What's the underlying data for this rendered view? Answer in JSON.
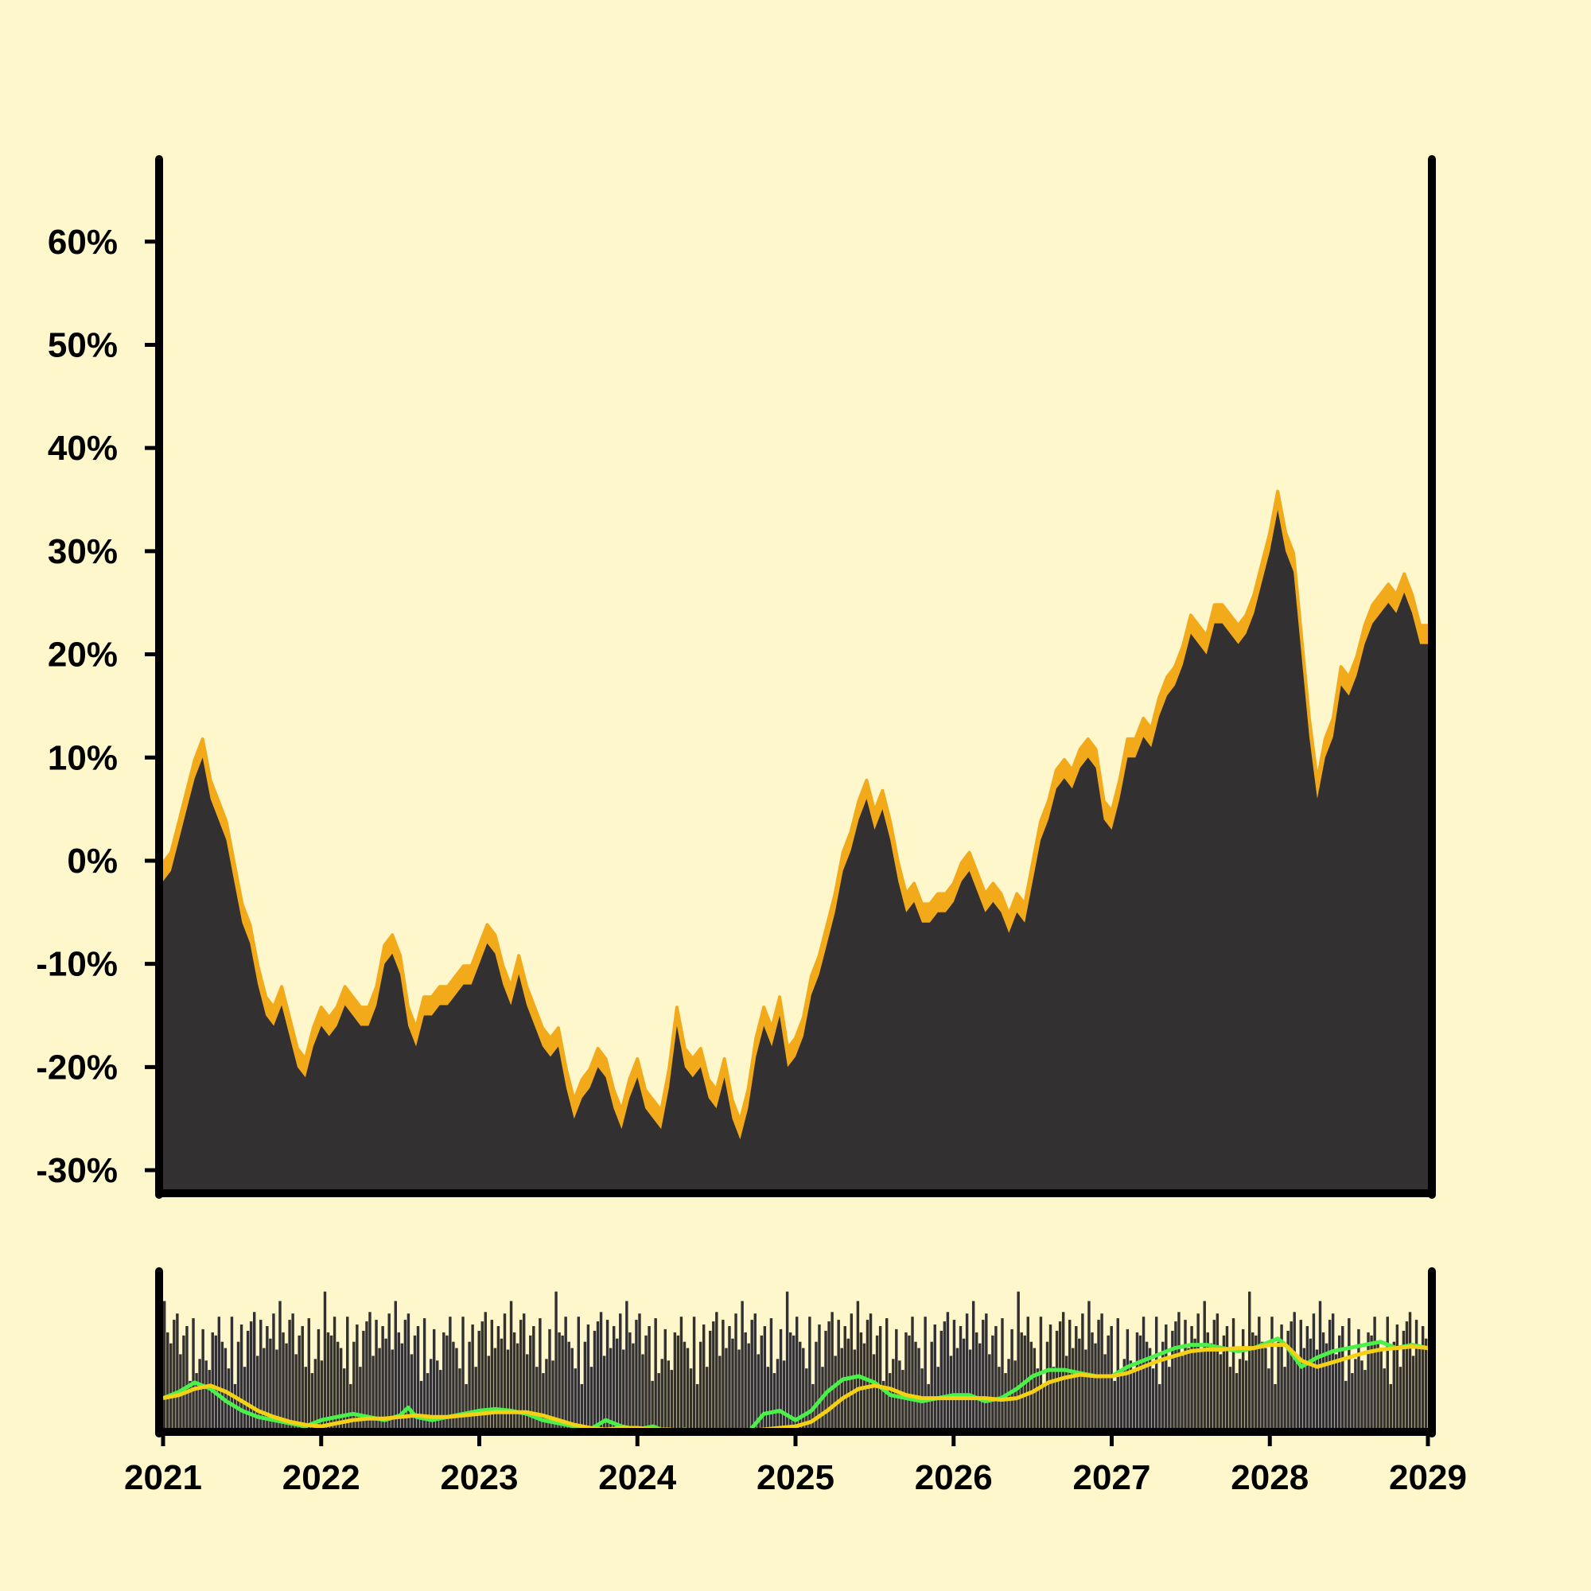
{
  "chart_data": {
    "type": "area",
    "y_tick_labels": [
      "60%",
      "50%",
      "40%",
      "30%",
      "20%",
      "10%",
      "0%",
      "-10%",
      "-20%",
      "-30%"
    ],
    "y_tick_values": [
      60,
      50,
      40,
      30,
      20,
      10,
      0,
      -10,
      -20,
      -30
    ],
    "x_tick_labels": [
      "2021",
      "2022",
      "2023",
      "2024",
      "2025",
      "2026",
      "2027",
      "2028",
      "2029"
    ],
    "x_tick_values": [
      2021,
      2022,
      2023,
      2024,
      2025,
      2026,
      2027,
      2028,
      2029
    ],
    "ylim": [
      -32,
      68
    ],
    "xlim": [
      2021,
      2029
    ],
    "volume_ylim": [
      0,
      100
    ],
    "grid": false,
    "colors": {
      "background": "#FEF7CB",
      "area_fill": "#333031",
      "band": "#F2AA1A",
      "axis": "#000000",
      "volume_bar": "#333031",
      "ma_fast": "#4BF04B",
      "ma_slow": "#F5D116"
    },
    "price_series": {
      "x": [
        2021.0,
        2021.05,
        2021.1,
        2021.15,
        2021.2,
        2021.25,
        2021.3,
        2021.35,
        2021.4,
        2021.45,
        2021.5,
        2021.55,
        2021.6,
        2021.65,
        2021.7,
        2021.75,
        2021.8,
        2021.85,
        2021.9,
        2021.95,
        2022.0,
        2022.05,
        2022.1,
        2022.15,
        2022.2,
        2022.25,
        2022.3,
        2022.35,
        2022.4,
        2022.45,
        2022.5,
        2022.55,
        2022.6,
        2022.65,
        2022.7,
        2022.75,
        2022.8,
        2022.85,
        2022.9,
        2022.95,
        2023.0,
        2023.05,
        2023.1,
        2023.15,
        2023.2,
        2023.25,
        2023.3,
        2023.35,
        2023.4,
        2023.45,
        2023.5,
        2023.55,
        2023.6,
        2023.65,
        2023.7,
        2023.75,
        2023.8,
        2023.85,
        2023.9,
        2023.95,
        2024.0,
        2024.05,
        2024.1,
        2024.15,
        2024.2,
        2024.25,
        2024.3,
        2024.35,
        2024.4,
        2024.45,
        2024.5,
        2024.55,
        2024.6,
        2024.65,
        2024.7,
        2024.75,
        2024.8,
        2024.85,
        2024.9,
        2024.95,
        2025.0,
        2025.05,
        2025.1,
        2025.15,
        2025.2,
        2025.25,
        2025.3,
        2025.35,
        2025.4,
        2025.45,
        2025.5,
        2025.55,
        2025.6,
        2025.65,
        2025.7,
        2025.75,
        2025.8,
        2025.85,
        2025.9,
        2025.95,
        2026.0,
        2026.05,
        2026.1,
        2026.15,
        2026.2,
        2026.25,
        2026.3,
        2026.35,
        2026.4,
        2026.45,
        2026.5,
        2026.55,
        2026.6,
        2026.65,
        2026.7,
        2026.75,
        2026.8,
        2026.85,
        2026.9,
        2026.95,
        2027.0,
        2027.05,
        2027.1,
        2027.15,
        2027.2,
        2027.25,
        2027.3,
        2027.35,
        2027.4,
        2027.45,
        2027.5,
        2027.55,
        2027.6,
        2027.65,
        2027.7,
        2027.75,
        2027.8,
        2027.85,
        2027.9,
        2027.95,
        2028.0,
        2028.05,
        2028.1,
        2028.15,
        2028.2,
        2028.25,
        2028.3,
        2028.35,
        2028.4,
        2028.45,
        2028.5,
        2028.55,
        2028.6,
        2028.65,
        2028.7,
        2028.75,
        2028.8,
        2028.85,
        2028.9,
        2028.95,
        2029.0
      ],
      "y": [
        -2,
        -1,
        2,
        5,
        8,
        10,
        6,
        4,
        2,
        -2,
        -6,
        -8,
        -12,
        -15,
        -16,
        -14,
        -17,
        -20,
        -21,
        -18,
        -16,
        -17,
        -16,
        -14,
        -15,
        -16,
        -16,
        -14,
        -10,
        -9,
        -11,
        -16,
        -18,
        -15,
        -15,
        -14,
        -14,
        -13,
        -12,
        -12,
        -10,
        -8,
        -9,
        -12,
        -14,
        -11,
        -14,
        -16,
        -18,
        -19,
        -18,
        -22,
        -25,
        -23,
        -22,
        -20,
        -21,
        -24,
        -26,
        -23,
        -21,
        -24,
        -25,
        -26,
        -22,
        -16,
        -20,
        -21,
        -20,
        -23,
        -24,
        -21,
        -25,
        -27,
        -24,
        -19,
        -16,
        -18,
        -15,
        -20,
        -19,
        -17,
        -13,
        -11,
        -8,
        -5,
        -1,
        1,
        4,
        6,
        3,
        5,
        2,
        -2,
        -5,
        -4,
        -6,
        -6,
        -5,
        -5,
        -4,
        -2,
        -1,
        -3,
        -5,
        -4,
        -5,
        -7,
        -5,
        -6,
        -2,
        2,
        4,
        7,
        8,
        7,
        9,
        10,
        9,
        4,
        3,
        6,
        10,
        10,
        12,
        11,
        14,
        16,
        17,
        19,
        22,
        21,
        20,
        23,
        23,
        22,
        21,
        22,
        24,
        27,
        30,
        34,
        30,
        28,
        20,
        12,
        6,
        10,
        12,
        17,
        16,
        18,
        21,
        23,
        24,
        25,
        24,
        26,
        24,
        21,
        21
      ]
    },
    "volume_bars": [
      82,
      62,
      55,
      70,
      74,
      48,
      60,
      66,
      31,
      71,
      36,
      45,
      64,
      44,
      38,
      62,
      60,
      72,
      56,
      52,
      39,
      72,
      29,
      56,
      67,
      40,
      63,
      69,
      75,
      47,
      70,
      52,
      66,
      58,
      74,
      51,
      82,
      62,
      55,
      70,
      74,
      48,
      60,
      66,
      40,
      71,
      36,
      45,
      64,
      44,
      88,
      62,
      60,
      72,
      56,
      52,
      39,
      72,
      29,
      56,
      67,
      40,
      63,
      69,
      75,
      47,
      70,
      52,
      66,
      58,
      74,
      51,
      82,
      62,
      55,
      70,
      74,
      48,
      60,
      66,
      31,
      71,
      36,
      45,
      64,
      44,
      38,
      62,
      60,
      72,
      56,
      52,
      39,
      72,
      29,
      56,
      67,
      40,
      63,
      69,
      75,
      47,
      70,
      52,
      66,
      58,
      74,
      51,
      82,
      62,
      55,
      70,
      74,
      48,
      60,
      66,
      40,
      71,
      36,
      45,
      64,
      44,
      88,
      62,
      60,
      72,
      56,
      52,
      39,
      72,
      29,
      56,
      67,
      40,
      63,
      69,
      75,
      47,
      70,
      52,
      66,
      58,
      74,
      51,
      82,
      62,
      55,
      70,
      74,
      48,
      60,
      66,
      31,
      71,
      36,
      45,
      64,
      44,
      38,
      62,
      60,
      72,
      56,
      52,
      39,
      72,
      29,
      56,
      67,
      40,
      63,
      69,
      75,
      47,
      70,
      52,
      66,
      58,
      74,
      51,
      82,
      62,
      55,
      70,
      74,
      48,
      60,
      66,
      40,
      71,
      36,
      45,
      64,
      44,
      88,
      62,
      60,
      72,
      56,
      52,
      39,
      72,
      29,
      56,
      67,
      40,
      63,
      69,
      75,
      47,
      70,
      52,
      66,
      58,
      74,
      51,
      82,
      62,
      55,
      70,
      74,
      48,
      60,
      66,
      31,
      71,
      36,
      45,
      64,
      44,
      38,
      62,
      60,
      72,
      56,
      52,
      39,
      72,
      29,
      56,
      67,
      40,
      63,
      69,
      75,
      47,
      70,
      52,
      66,
      58,
      74,
      51,
      82,
      62,
      55,
      70,
      74,
      48,
      60,
      66,
      40,
      71,
      36,
      45,
      64,
      44,
      88,
      62,
      60,
      72,
      56,
      52,
      39,
      72,
      29,
      56,
      67,
      40,
      63,
      69,
      75,
      47,
      70,
      52,
      66,
      58,
      74,
      51,
      82,
      62,
      55,
      70,
      74,
      48,
      60,
      66,
      31,
      71,
      36,
      45,
      64,
      44,
      38,
      62,
      60,
      72,
      56,
      52,
      39,
      72,
      29,
      56,
      67,
      40,
      63,
      69,
      75,
      47,
      70,
      52,
      66,
      58,
      74,
      51,
      82,
      62,
      55,
      70,
      74,
      48,
      60,
      66,
      40,
      71,
      36,
      45,
      64,
      44,
      88,
      62,
      60,
      72,
      56,
      52,
      39,
      72,
      29,
      56,
      67,
      40,
      63,
      69,
      75,
      47,
      70,
      52,
      66,
      58,
      74,
      51,
      82,
      62,
      55,
      70,
      74,
      48,
      60,
      66,
      31,
      71,
      36,
      45,
      64,
      44,
      38,
      62,
      60,
      72,
      56,
      52,
      39,
      72,
      29,
      56,
      67,
      40,
      63,
      69,
      75,
      47,
      70,
      52,
      66,
      58
    ],
    "ma_fast": {
      "x": [
        2021.0,
        2021.1,
        2021.2,
        2021.3,
        2021.4,
        2021.5,
        2021.6,
        2021.7,
        2021.8,
        2021.9,
        2022.0,
        2022.1,
        2022.2,
        2022.3,
        2022.4,
        2022.5,
        2022.55,
        2022.6,
        2022.7,
        2022.8,
        2022.9,
        2023.0,
        2023.1,
        2023.2,
        2023.3,
        2023.4,
        2023.5,
        2023.6,
        2023.7,
        2023.8,
        2023.9,
        2024.0,
        2024.1,
        2024.2,
        2024.3,
        2024.4,
        2024.5,
        2024.6,
        2024.7,
        2024.8,
        2024.9,
        2025.0,
        2025.1,
        2025.2,
        2025.3,
        2025.4,
        2025.5,
        2025.6,
        2025.7,
        2025.8,
        2025.9,
        2026.0,
        2026.1,
        2026.2,
        2026.3,
        2026.4,
        2026.5,
        2026.6,
        2026.7,
        2026.8,
        2026.9,
        2027.0,
        2027.1,
        2027.2,
        2027.3,
        2027.4,
        2027.5,
        2027.6,
        2027.7,
        2027.8,
        2027.9,
        2028.0,
        2028.05,
        2028.1,
        2028.2,
        2028.3,
        2028.4,
        2028.5,
        2028.6,
        2028.7,
        2028.8,
        2028.9,
        2029.0
      ],
      "y": [
        20,
        24,
        30,
        26,
        18,
        12,
        8,
        6,
        4,
        2,
        6,
        8,
        10,
        8,
        6,
        9,
        14,
        8,
        6,
        8,
        10,
        12,
        13,
        12,
        10,
        6,
        4,
        2,
        0,
        6,
        2,
        0,
        2,
        -2,
        0,
        -2,
        -1,
        -1,
        -2,
        10,
        12,
        6,
        12,
        24,
        32,
        34,
        30,
        22,
        20,
        18,
        20,
        22,
        22,
        18,
        20,
        26,
        34,
        38,
        38,
        36,
        34,
        34,
        40,
        44,
        48,
        52,
        54,
        54,
        52,
        50,
        52,
        56,
        58,
        54,
        40,
        46,
        50,
        52,
        54,
        56,
        52,
        54,
        52
      ]
    },
    "ma_slow": {
      "x": [
        2021.0,
        2021.1,
        2021.2,
        2021.3,
        2021.4,
        2021.5,
        2021.6,
        2021.7,
        2021.8,
        2021.9,
        2022.0,
        2022.1,
        2022.2,
        2022.3,
        2022.4,
        2022.5,
        2022.6,
        2022.7,
        2022.8,
        2022.9,
        2023.0,
        2023.1,
        2023.2,
        2023.3,
        2023.4,
        2023.5,
        2023.6,
        2023.7,
        2023.8,
        2023.9,
        2024.0,
        2024.1,
        2024.2,
        2024.3,
        2024.4,
        2024.5,
        2024.6,
        2024.7,
        2024.8,
        2024.9,
        2025.0,
        2025.1,
        2025.2,
        2025.3,
        2025.4,
        2025.5,
        2025.6,
        2025.7,
        2025.8,
        2025.9,
        2026.0,
        2026.1,
        2026.2,
        2026.3,
        2026.4,
        2026.5,
        2026.6,
        2026.7,
        2026.8,
        2026.9,
        2027.0,
        2027.1,
        2027.2,
        2027.3,
        2027.4,
        2027.5,
        2027.6,
        2027.7,
        2027.8,
        2027.9,
        2028.0,
        2028.1,
        2028.2,
        2028.3,
        2028.4,
        2028.5,
        2028.6,
        2028.7,
        2028.8,
        2028.9,
        2029.0
      ],
      "y": [
        20,
        22,
        26,
        28,
        24,
        18,
        12,
        8,
        5,
        3,
        2,
        4,
        6,
        7,
        7,
        8,
        9,
        8,
        8,
        9,
        10,
        11,
        11,
        11,
        9,
        6,
        3,
        1,
        0,
        1,
        1,
        0,
        0,
        -1,
        -1,
        -1,
        -1,
        -1,
        0,
        1,
        2,
        5,
        12,
        20,
        26,
        28,
        26,
        22,
        20,
        20,
        20,
        20,
        20,
        19,
        20,
        24,
        30,
        33,
        35,
        34,
        34,
        36,
        40,
        44,
        47,
        50,
        51,
        51,
        52,
        52,
        54,
        54,
        44,
        40,
        43,
        46,
        49,
        51,
        52,
        53,
        52
      ]
    }
  }
}
